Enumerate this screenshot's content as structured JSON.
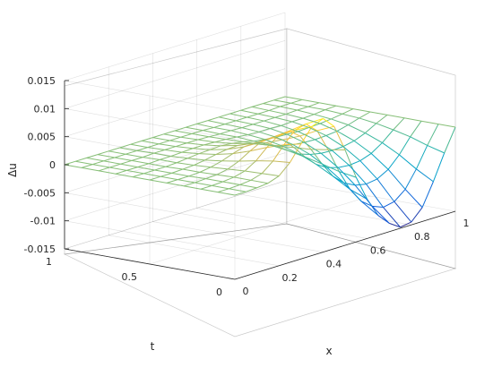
{
  "chart_data": {
    "type": "surface-mesh",
    "title": "",
    "xlabel": "x",
    "ylabel": "t",
    "zlabel": "Δu",
    "xlim": [
      0,
      1
    ],
    "tlim": [
      0,
      1
    ],
    "zlim": [
      -0.015,
      0.015
    ],
    "x_ticks": [
      "0",
      "0.2",
      "0.4",
      "0.6",
      "0.8",
      "1"
    ],
    "x_tick_values": [
      0,
      0.2,
      0.4,
      0.6,
      0.8,
      1
    ],
    "t_ticks": [
      "0",
      "0.5",
      "1"
    ],
    "t_tick_values": [
      0,
      0.5,
      1
    ],
    "z_ticks": [
      "-0.015",
      "-0.01",
      "-0.005",
      "0",
      "0.005",
      "0.01",
      "0.015"
    ],
    "z_tick_values": [
      -0.015,
      -0.01,
      -0.005,
      0,
      0.005,
      0.01,
      0.015
    ],
    "grid": true,
    "colormap": "parula",
    "colormap_colors": [
      "#352a87",
      "#0f5cdd",
      "#1481d6",
      "#06a4ca",
      "#2eb7a4",
      "#87bf77",
      "#d1bb59",
      "#fec832",
      "#f9fb0e"
    ],
    "surface": {
      "x": [
        0,
        0.05,
        0.1,
        0.15,
        0.2,
        0.25,
        0.3,
        0.35,
        0.4,
        0.45,
        0.5,
        0.55,
        0.6,
        0.65,
        0.7,
        0.75,
        0.8,
        0.85,
        0.9,
        0.95,
        1
      ],
      "t": [
        0,
        0.1,
        0.2,
        0.3,
        0.4,
        0.5,
        0.6,
        0.7,
        0.8,
        0.9,
        1
      ],
      "z_rows_by_t": [
        [
          0,
          0.0,
          0.0001,
          0.0003,
          0.001,
          0.0028,
          0.0055,
          0.008,
          0.0088,
          0.0068,
          0.002,
          -0.0035,
          -0.008,
          -0.0115,
          -0.0135,
          -0.0148,
          -0.0145,
          -0.0125,
          -0.0085,
          -0.004,
          0
        ],
        [
          0,
          0.0,
          0.0001,
          0.0003,
          0.0009,
          0.0025,
          0.0048,
          0.0068,
          0.0073,
          0.0055,
          0.0015,
          -0.003,
          -0.0068,
          -0.0095,
          -0.011,
          -0.0118,
          -0.0114,
          -0.0098,
          -0.0068,
          -0.0032,
          0
        ],
        [
          0,
          0.0,
          0.0001,
          0.0003,
          0.0008,
          0.002,
          0.0038,
          0.0052,
          0.0055,
          0.004,
          0.001,
          -0.0022,
          -0.005,
          -0.0068,
          -0.0078,
          -0.0082,
          -0.0079,
          -0.0068,
          -0.0048,
          -0.0022,
          0
        ],
        [
          0,
          0.0,
          0.0001,
          0.0002,
          0.0006,
          0.0014,
          0.0026,
          0.0036,
          0.0038,
          0.0028,
          0.0008,
          -0.0015,
          -0.0034,
          -0.0046,
          -0.0052,
          -0.0054,
          -0.0052,
          -0.0045,
          -0.0032,
          -0.0015,
          0
        ],
        [
          0,
          0.0,
          0.0,
          0.0001,
          0.0004,
          0.0009,
          0.0016,
          0.0022,
          0.0023,
          0.0017,
          0.0005,
          -0.0009,
          -0.0021,
          -0.0028,
          -0.0032,
          -0.0033,
          -0.0032,
          -0.0028,
          -0.002,
          -0.0009,
          0
        ],
        [
          0,
          0.0,
          0.0,
          0.0001,
          0.0002,
          0.0005,
          0.0009,
          0.0012,
          0.0013,
          0.001,
          0.0003,
          -0.0005,
          -0.0012,
          -0.0016,
          -0.0018,
          -0.0019,
          -0.0018,
          -0.0016,
          -0.0011,
          -0.0005,
          0
        ],
        [
          0,
          0.0,
          0.0,
          0.0,
          0.0001,
          0.0003,
          0.0005,
          0.0006,
          0.0007,
          0.0005,
          0.0002,
          -0.0003,
          -0.0006,
          -0.0008,
          -0.0009,
          -0.001,
          -0.0009,
          -0.0008,
          -0.0006,
          -0.0003,
          0
        ],
        [
          0,
          0.0,
          0.0,
          0.0,
          0.0001,
          0.0001,
          0.0002,
          0.0003,
          0.0003,
          0.0002,
          0.0001,
          -0.0001,
          -0.0003,
          -0.0004,
          -0.0004,
          -0.0005,
          -0.0004,
          -0.0004,
          -0.0003,
          -0.0001,
          0
        ],
        [
          0,
          0.0,
          0.0,
          0.0,
          0.0,
          0.0001,
          0.0001,
          0.0001,
          0.0001,
          0.0001,
          0.0,
          -0.0001,
          -0.0001,
          -0.0002,
          -0.0002,
          -0.0002,
          -0.0002,
          -0.0002,
          -0.0001,
          -0.0001,
          0
        ],
        [
          0,
          0.0,
          0.0,
          0.0,
          0.0,
          0.0,
          0.0,
          0.0,
          0.0,
          0.0,
          0.0,
          0.0,
          -0.0001,
          -0.0001,
          -0.0001,
          -0.0001,
          -0.0001,
          -0.0001,
          0.0,
          0.0,
          0
        ],
        [
          0,
          0,
          0,
          0,
          0,
          0,
          0,
          0,
          0,
          0,
          0,
          0,
          0,
          0,
          0,
          0,
          0,
          0,
          0,
          0,
          0
        ]
      ]
    }
  }
}
